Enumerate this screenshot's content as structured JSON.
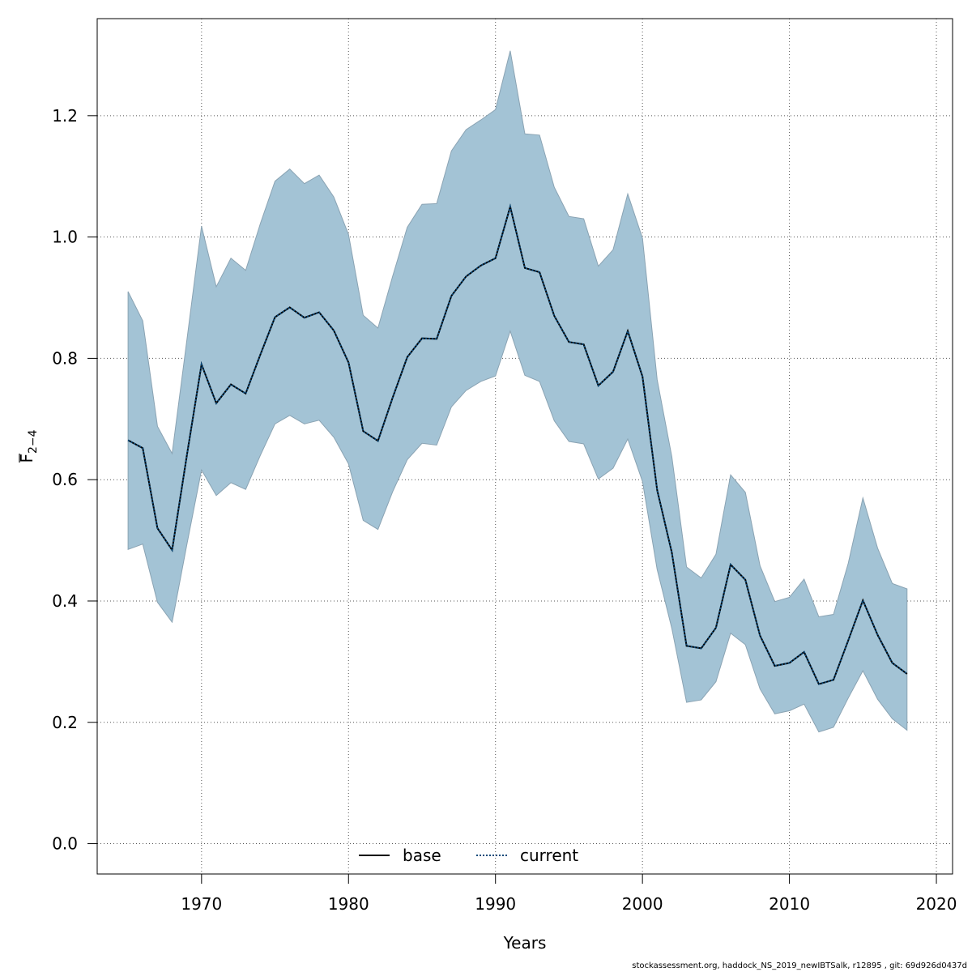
{
  "chart_data": {
    "type": "line",
    "xlabel": "Years",
    "ylabel": "F",
    "ylabel_sub": "2−4",
    "xlim": [
      1962.9,
      2021.1
    ],
    "ylim": [
      -0.05,
      1.36
    ],
    "xticks": [
      1970,
      1980,
      1990,
      2000,
      2010,
      2020
    ],
    "yticks": [
      0.0,
      0.2,
      0.4,
      0.6,
      0.8,
      1.0,
      1.2
    ],
    "ytick_labels": [
      "0.0",
      "0.2",
      "0.4",
      "0.6",
      "0.8",
      "1.0",
      "1.2"
    ],
    "grid": true,
    "legend_position": "bottom-center",
    "x": [
      1965,
      1966,
      1967,
      1968,
      1969,
      1970,
      1971,
      1972,
      1973,
      1974,
      1975,
      1976,
      1977,
      1978,
      1979,
      1980,
      1981,
      1982,
      1983,
      1984,
      1985,
      1986,
      1987,
      1988,
      1989,
      1990,
      1991,
      1992,
      1993,
      1994,
      1995,
      1996,
      1997,
      1998,
      1999,
      2000,
      2001,
      2002,
      2003,
      2004,
      2005,
      2006,
      2007,
      2008,
      2009,
      2010,
      2011,
      2012,
      2013,
      2014,
      2015,
      2016,
      2017,
      2018
    ],
    "series": [
      {
        "name": "base",
        "style": "solid",
        "color": "#000000",
        "values": [
          0.665,
          0.652,
          0.52,
          0.484,
          0.64,
          0.79,
          0.726,
          0.757,
          0.742,
          0.806,
          0.868,
          0.884,
          0.867,
          0.876,
          0.846,
          0.793,
          0.68,
          0.664,
          0.735,
          0.802,
          0.833,
          0.832,
          0.903,
          0.935,
          0.953,
          0.965,
          1.05,
          0.949,
          0.942,
          0.87,
          0.827,
          0.823,
          0.755,
          0.778,
          0.845,
          0.77,
          0.583,
          0.48,
          0.326,
          0.322,
          0.356,
          0.46,
          0.435,
          0.343,
          0.293,
          0.298,
          0.316,
          0.263,
          0.27,
          0.335,
          0.401,
          0.344,
          0.298,
          0.28
        ]
      },
      {
        "name": "current",
        "style": "dotted",
        "color": "#0c4a7a",
        "values": [
          0.665,
          0.652,
          0.52,
          0.484,
          0.64,
          0.79,
          0.726,
          0.757,
          0.742,
          0.806,
          0.868,
          0.884,
          0.867,
          0.876,
          0.846,
          0.793,
          0.68,
          0.664,
          0.735,
          0.802,
          0.833,
          0.832,
          0.903,
          0.935,
          0.953,
          0.965,
          1.05,
          0.949,
          0.942,
          0.87,
          0.827,
          0.823,
          0.755,
          0.778,
          0.845,
          0.77,
          0.583,
          0.48,
          0.326,
          0.322,
          0.356,
          0.46,
          0.435,
          0.343,
          0.293,
          0.298,
          0.316,
          0.263,
          0.27,
          0.335,
          0.401,
          0.344,
          0.298,
          0.28
        ]
      }
    ],
    "band": {
      "color": "#a3c3d5",
      "edge_color": "#8aa3b3",
      "upper": [
        0.91,
        0.862,
        0.688,
        0.643,
        0.83,
        1.018,
        0.918,
        0.965,
        0.945,
        1.022,
        1.092,
        1.112,
        1.088,
        1.102,
        1.066,
        1.004,
        0.871,
        0.85,
        0.935,
        1.016,
        1.054,
        1.055,
        1.142,
        1.177,
        1.193,
        1.21,
        1.307,
        1.17,
        1.168,
        1.082,
        1.034,
        1.03,
        0.952,
        0.979,
        1.071,
        0.998,
        0.765,
        0.638,
        0.456,
        0.438,
        0.477,
        0.608,
        0.579,
        0.458,
        0.399,
        0.406,
        0.436,
        0.374,
        0.378,
        0.462,
        0.57,
        0.487,
        0.429,
        0.42
      ],
      "lower": [
        0.485,
        0.494,
        0.398,
        0.365,
        0.493,
        0.616,
        0.574,
        0.595,
        0.584,
        0.64,
        0.692,
        0.706,
        0.692,
        0.698,
        0.67,
        0.626,
        0.533,
        0.518,
        0.58,
        0.633,
        0.66,
        0.657,
        0.72,
        0.747,
        0.762,
        0.771,
        0.845,
        0.772,
        0.762,
        0.697,
        0.663,
        0.659,
        0.601,
        0.619,
        0.667,
        0.597,
        0.452,
        0.355,
        0.233,
        0.237,
        0.267,
        0.347,
        0.328,
        0.255,
        0.214,
        0.219,
        0.23,
        0.184,
        0.192,
        0.24,
        0.285,
        0.238,
        0.206,
        0.187
      ]
    }
  },
  "footer": "stockassessment.org, haddock_NS_2019_newIBTSalk, r12895 , git: 69d926d0437d"
}
